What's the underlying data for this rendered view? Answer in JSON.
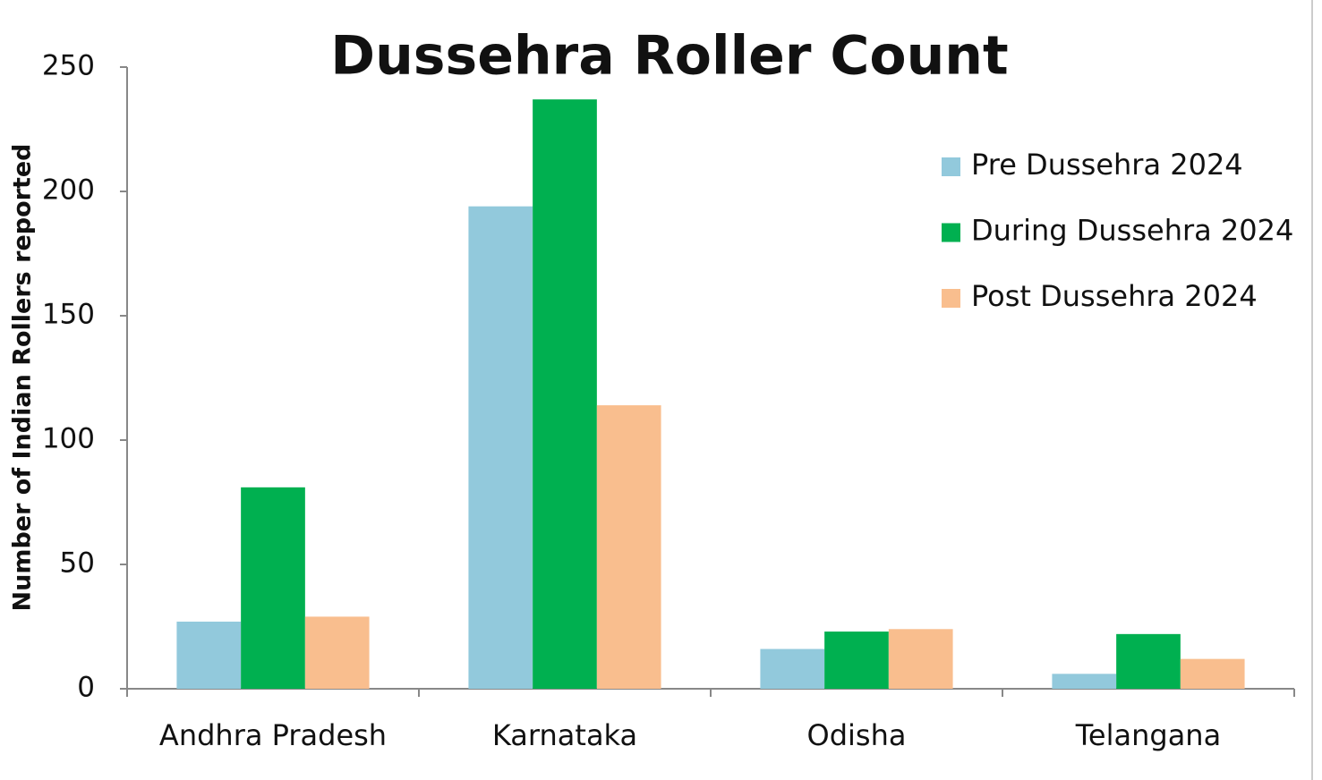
{
  "chart_data": {
    "type": "bar",
    "title": "Dussehra Roller Count",
    "y_label": "Number of Indian Rollers reported",
    "categories": [
      "Andhra Pradesh",
      "Karnataka",
      "Odisha",
      "Telangana"
    ],
    "series": [
      {
        "name": "Pre Dussehra 2024",
        "color": "#92c9dc",
        "values": [
          27,
          194,
          16,
          6
        ]
      },
      {
        "name": "During Dussehra 2024",
        "color": "#00b050",
        "values": [
          81,
          237,
          23,
          22
        ]
      },
      {
        "name": "Post Dussehra 2024",
        "color": "#f9be8e",
        "values": [
          29,
          114,
          24,
          12
        ]
      }
    ],
    "ylim": [
      0,
      250
    ],
    "yticks": [
      0,
      50,
      100,
      150,
      200,
      250
    ],
    "grid": false,
    "legend": "upper right"
  }
}
